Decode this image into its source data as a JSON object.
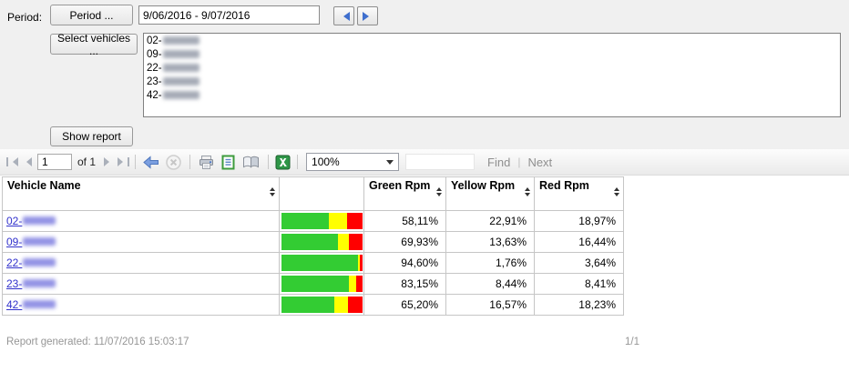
{
  "period": {
    "label": "Period:",
    "button_label": "Period ...",
    "date_range": "9/06/2016 - 9/07/2016"
  },
  "vehicle_picker": {
    "button_label": "Select vehicles ...",
    "items": [
      {
        "prefix": "02-"
      },
      {
        "prefix": "09-"
      },
      {
        "prefix": "22-"
      },
      {
        "prefix": "23-"
      },
      {
        "prefix": "42-"
      }
    ]
  },
  "show_report_label": "Show report",
  "toolbar": {
    "current_page": "1",
    "of_label": "of 1",
    "zoom_value": "100%",
    "find_value": "",
    "find_label": "Find",
    "next_label": "Next",
    "icons": [
      "first-page-icon",
      "previous-page-icon",
      "next-page-icon",
      "last-page-icon",
      "back-icon",
      "cancel-icon",
      "print-icon",
      "print-layout-icon",
      "page-setup-icon",
      "excel-export-icon"
    ]
  },
  "report_table": {
    "columns": [
      "Vehicle Name",
      "",
      "Green Rpm",
      "Yellow Rpm",
      "Red Rpm"
    ],
    "rows": [
      {
        "vehicle_prefix": "02-",
        "green_label": "58,11%",
        "yellow_label": "22,91%",
        "red_label": "18,97%",
        "bar": {
          "green": 58.11,
          "yellow": 22.91,
          "red": 18.97
        }
      },
      {
        "vehicle_prefix": "09-",
        "green_label": "69,93%",
        "yellow_label": "13,63%",
        "red_label": "16,44%",
        "bar": {
          "green": 69.93,
          "yellow": 13.63,
          "red": 16.44
        }
      },
      {
        "vehicle_prefix": "22-",
        "green_label": "94,60%",
        "yellow_label": "1,76%",
        "red_label": "3,64%",
        "bar": {
          "green": 94.6,
          "yellow": 1.76,
          "red": 3.64
        }
      },
      {
        "vehicle_prefix": "23-",
        "green_label": "83,15%",
        "yellow_label": "8,44%",
        "red_label": "8,41%",
        "bar": {
          "green": 83.15,
          "yellow": 8.44,
          "red": 8.41
        }
      },
      {
        "vehicle_prefix": "42-",
        "green_label": "65,20%",
        "yellow_label": "16,57%",
        "red_label": "18,23%",
        "bar": {
          "green": 65.2,
          "yellow": 16.57,
          "red": 18.23
        }
      }
    ]
  },
  "footer": {
    "generated": "Report generated: 11/07/2016 15:03:17",
    "page_indicator": "1/1"
  },
  "colors": {
    "bar_green": "#33cc33",
    "bar_yellow": "#ffff00",
    "bar_red": "#ff0000"
  }
}
